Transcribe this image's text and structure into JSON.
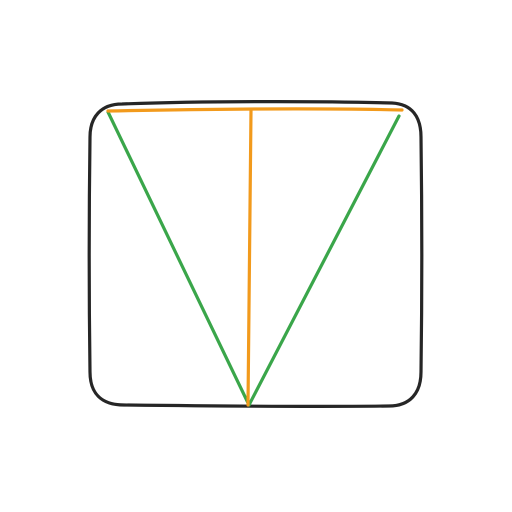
{
  "diagram": {
    "description_shapes": [
      "rounded-square",
      "green-v",
      "orange-t"
    ],
    "colors": {
      "background": "#ffffff",
      "frame": "#262626",
      "green": "#3aa64a",
      "orange": "#f29a1c"
    }
  }
}
